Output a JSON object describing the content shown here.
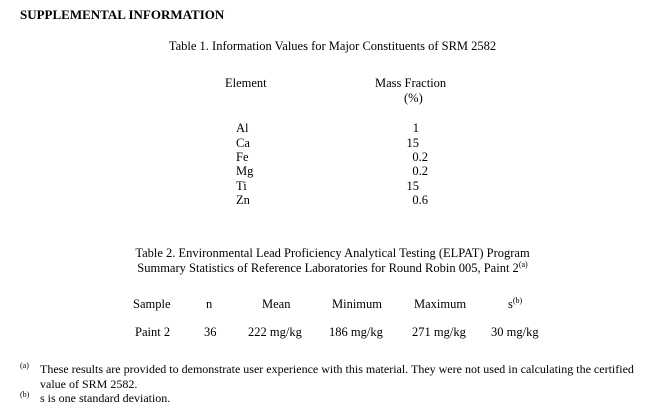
{
  "heading": "SUPPLEMENTAL INFORMATION",
  "table1": {
    "caption": "Table 1.  Information Values for Major Constituents of SRM 2582",
    "col_element": "Element",
    "col_mass_fraction": "Mass Fraction",
    "col_unit": "(%)",
    "rows": [
      {
        "element": "Al",
        "int": "1",
        "dec": ""
      },
      {
        "element": "Ca",
        "int": "15",
        "dec": ""
      },
      {
        "element": "Fe",
        "int": "0",
        "dec": ".2"
      },
      {
        "element": "Mg",
        "int": "0",
        "dec": ".2"
      },
      {
        "element": "Ti",
        "int": "15",
        "dec": ""
      },
      {
        "element": "Zn",
        "int": "0",
        "dec": ".6"
      }
    ]
  },
  "table2": {
    "caption_line1": "Table 2.  Environmental Lead Proficiency Analytical Testing (ELPAT) Program",
    "caption_line2": "Summary Statistics of Reference Laboratories for Round Robin 005, Paint 2",
    "caption_note": "(a)",
    "headers": {
      "sample": "Sample",
      "n": "n",
      "mean": "Mean",
      "minimum": "Minimum",
      "maximum": "Maximum",
      "s": "s",
      "s_note": "(b)"
    },
    "row": {
      "sample": "Paint 2",
      "n": "36",
      "mean": "222 mg/kg",
      "minimum": "186 mg/kg",
      "maximum": "271 mg/kg",
      "s": "30 mg/kg"
    }
  },
  "footnotes": [
    {
      "marker": "(a)",
      "line1": "These results are provided to demonstrate user experience with this material.  They were not used in calculating the certified",
      "line2": "value of SRM 2582."
    },
    {
      "marker": "(b)",
      "line1": "s is one standard deviation."
    }
  ]
}
